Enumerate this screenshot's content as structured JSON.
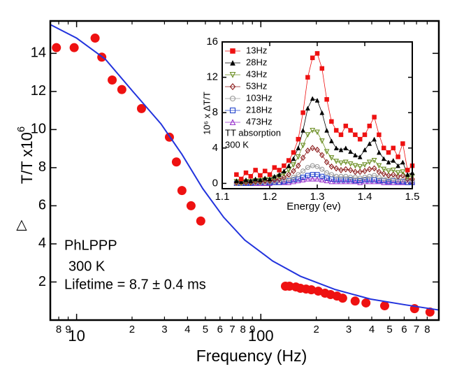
{
  "chart_data": [
    {
      "type": "scatter",
      "xlabel": "Frequency (Hz)",
      "ylabel_symbol": "△",
      "ylabel": "T/T x10",
      "ylabel_exponent": "6",
      "xscale": "log",
      "xlim": [
        7.2,
        925
      ],
      "ylim": [
        0,
        15.7
      ],
      "xticks": [
        10,
        100
      ],
      "xticks_minor": [
        8,
        9,
        {
          "value": 20,
          "label": "2"
        },
        {
          "value": 30,
          "label": "3"
        },
        {
          "value": 40,
          "label": "4"
        },
        {
          "value": 50,
          "label": "5"
        },
        {
          "value": 60,
          "label": "6"
        },
        {
          "value": 70,
          "label": "7"
        },
        {
          "value": 80,
          "label": "8"
        },
        {
          "value": 90,
          "label": "9"
        },
        {
          "value": 200,
          "label": "2"
        },
        {
          "value": 300,
          "label": "3"
        },
        {
          "value": 400,
          "label": "4"
        },
        {
          "value": 500,
          "label": "5"
        },
        {
          "value": 600,
          "label": "6"
        },
        {
          "value": 700,
          "label": "7"
        },
        {
          "value": 800,
          "label": "8"
        }
      ],
      "yticks": [
        2,
        4,
        6,
        8,
        10,
        12,
        14
      ],
      "annotations": [
        "PhLPPP",
        "300 K",
        "Lifetime = 8.7 ± 0.4 ms"
      ],
      "series": [
        {
          "style": "points",
          "color": "#ee1111",
          "x": [
            7.77,
            9.7,
            12.6,
            13.7,
            15.6,
            17.6,
            22.5,
            31.9,
            34.8,
            37.3,
            41.8,
            47.2,
            136,
            143,
            155,
            164,
            176,
            188,
            205,
            223,
            239,
            259,
            278,
            325,
            372,
            470,
            683,
            828
          ],
          "values": [
            14.3,
            14.3,
            14.8,
            13.8,
            12.6,
            12.1,
            11.1,
            9.6,
            8.3,
            6.8,
            6.0,
            5.2,
            1.78,
            1.78,
            1.74,
            1.67,
            1.63,
            1.59,
            1.52,
            1.41,
            1.34,
            1.26,
            1.15,
            1.0,
            0.9,
            0.75,
            0.6,
            0.42
          ]
        },
        {
          "style": "line",
          "color": "#2233dd",
          "x": [
            7.24,
            10,
            14.3,
            20.2,
            28.7,
            37.3,
            48.4,
            62.8,
            81.8,
            116,
            164,
            254,
            394,
            609,
            925
          ],
          "values": [
            15.5,
            14.8,
            13.7,
            12.0,
            10.3,
            8.7,
            6.9,
            5.4,
            4.2,
            3.1,
            2.3,
            1.6,
            1.1,
            0.8,
            0.53
          ]
        }
      ]
    },
    {
      "type": "line",
      "xlabel": "Energy (ev)",
      "ylabel": "10⁶ x ΔT/T",
      "xlim": [
        1.1,
        1.5
      ],
      "ylim": [
        -0.6,
        16
      ],
      "xticks": [
        1.1,
        1.2,
        1.3,
        1.4,
        1.5
      ],
      "yticks": [
        0,
        4,
        8,
        12,
        16
      ],
      "annotations": [
        "TT absorption",
        "300 K"
      ],
      "x": [
        1.13,
        1.14,
        1.15,
        1.16,
        1.17,
        1.18,
        1.19,
        1.2,
        1.21,
        1.22,
        1.23,
        1.24,
        1.25,
        1.26,
        1.27,
        1.28,
        1.29,
        1.3,
        1.31,
        1.32,
        1.33,
        1.34,
        1.35,
        1.36,
        1.37,
        1.38,
        1.39,
        1.4,
        1.41,
        1.42,
        1.43,
        1.44,
        1.45,
        1.46,
        1.47,
        1.48,
        1.49,
        1.5
      ],
      "series": [
        {
          "name": "13Hz",
          "color": "#ee1111",
          "marker": "square-filled",
          "values": [
            1.0,
            0.5,
            1.2,
            0.8,
            1.5,
            0.9,
            1.4,
            1.0,
            1.8,
            1.5,
            2.0,
            2.6,
            3.5,
            5.0,
            8.0,
            12.0,
            14.2,
            14.7,
            13.0,
            9.5,
            7.0,
            6.0,
            5.5,
            6.5,
            6.0,
            5.5,
            5.0,
            5.5,
            6.5,
            7.5,
            5.5,
            4.0,
            3.5,
            4.0,
            3.0,
            4.5,
            1.5,
            2.0
          ]
        },
        {
          "name": "28Hz",
          "color": "#000000",
          "marker": "triangle-filled",
          "values": [
            0.3,
            0.2,
            0.4,
            0.3,
            0.5,
            0.4,
            0.6,
            0.5,
            0.8,
            1.0,
            1.4,
            2.0,
            2.8,
            4.0,
            6.0,
            8.5,
            9.6,
            9.4,
            8.0,
            6.0,
            4.8,
            4.0,
            3.8,
            4.0,
            3.6,
            3.2,
            3.0,
            3.8,
            4.5,
            5.0,
            3.5,
            2.8,
            2.4,
            2.6,
            2.0,
            2.4,
            1.0,
            1.2
          ]
        },
        {
          "name": "43Hz",
          "color": "#6b8e23",
          "marker": "triangle-down-open",
          "values": [
            0.2,
            0.1,
            0.2,
            0.2,
            0.3,
            0.3,
            0.4,
            0.4,
            0.6,
            0.8,
            1.1,
            1.5,
            2.1,
            3.0,
            4.3,
            5.5,
            6.0,
            5.8,
            4.8,
            3.6,
            2.9,
            2.5,
            2.3,
            2.4,
            2.2,
            2.0,
            1.9,
            2.1,
            2.4,
            2.6,
            2.0,
            1.6,
            1.4,
            1.5,
            1.2,
            1.3,
            0.7,
            0.8
          ]
        },
        {
          "name": "53Hz",
          "color": "#8b1a1a",
          "marker": "diamond-open",
          "values": [
            0.1,
            0.1,
            0.1,
            0.1,
            0.2,
            0.2,
            0.3,
            0.3,
            0.4,
            0.5,
            0.7,
            1.0,
            1.4,
            2.0,
            2.9,
            3.7,
            4.0,
            3.8,
            3.2,
            2.4,
            1.9,
            1.7,
            1.5,
            1.6,
            1.5,
            1.3,
            1.3,
            1.4,
            1.6,
            1.7,
            1.3,
            1.1,
            0.9,
            1.0,
            0.8,
            0.9,
            0.5,
            0.5
          ]
        },
        {
          "name": "103Hz",
          "color": "#999999",
          "marker": "circle-open",
          "values": [
            0,
            0,
            0.1,
            0.1,
            0.1,
            0.1,
            0.1,
            0.2,
            0.2,
            0.3,
            0.4,
            0.5,
            0.7,
            1.0,
            1.4,
            1.8,
            2.0,
            1.9,
            1.6,
            1.2,
            1.0,
            0.8,
            0.8,
            0.8,
            0.7,
            0.7,
            0.6,
            0.7,
            0.8,
            0.9,
            0.7,
            0.5,
            0.5,
            0.5,
            0.4,
            0.4,
            0.3,
            0.3
          ]
        },
        {
          "name": "218Hz",
          "color": "#2244cc",
          "marker": "square-open",
          "values": [
            0,
            0,
            0,
            0,
            0.1,
            0.1,
            0.1,
            0.1,
            0.1,
            0.1,
            0.2,
            0.3,
            0.4,
            0.5,
            0.7,
            0.9,
            1.0,
            1.0,
            0.8,
            0.6,
            0.5,
            0.4,
            0.4,
            0.4,
            0.4,
            0.3,
            0.3,
            0.4,
            0.4,
            0.4,
            0.3,
            0.3,
            0.2,
            0.3,
            0.2,
            0.2,
            0.1,
            0.1
          ]
        },
        {
          "name": "473Hz",
          "color": "#9933cc",
          "marker": "triangle-open",
          "values": [
            0,
            0,
            0,
            0,
            0,
            0,
            0,
            0,
            0.1,
            0.1,
            0.1,
            0.1,
            0.2,
            0.3,
            0.4,
            0.5,
            0.5,
            0.5,
            0.4,
            0.3,
            0.2,
            0.2,
            0.2,
            0.2,
            0.2,
            0.2,
            0.1,
            0.2,
            0.2,
            0.2,
            0.2,
            0.1,
            0.1,
            0.1,
            0.1,
            0.1,
            0.1,
            0.1
          ]
        }
      ]
    }
  ]
}
